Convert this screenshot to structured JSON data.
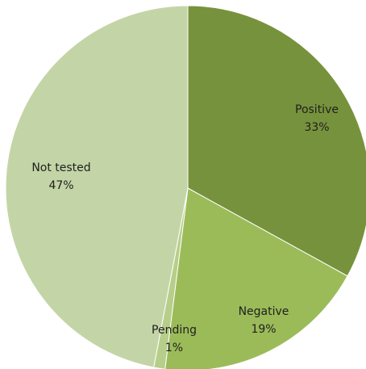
{
  "chart_data": {
    "type": "pie",
    "slices": [
      {
        "label": "Positive",
        "value": 33,
        "value_label": "33%",
        "color": "#77923c"
      },
      {
        "label": "Negative",
        "value": 19,
        "value_label": "19%",
        "color": "#9bbb59"
      },
      {
        "label": "Pending",
        "value": 1,
        "value_label": "1%",
        "color": "#b7ce8a"
      },
      {
        "label": "Not tested",
        "value": 47,
        "value_label": "47%",
        "color": "#c3d5a6"
      }
    ],
    "start_angle": "12 o'clock, clockwise",
    "label_color": "#1f1f1f",
    "legend": "none"
  }
}
